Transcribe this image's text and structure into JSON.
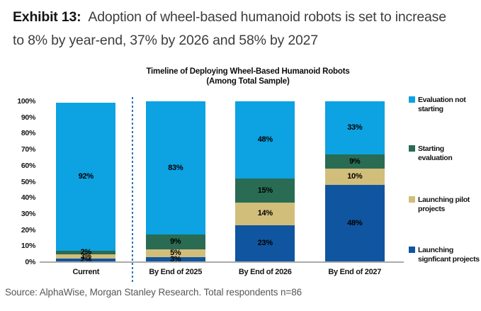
{
  "header": {
    "exhibit_label": "Exhibit 13:",
    "title_text": "Adoption of wheel-based humanoid robots is set to increase to 8% by year-end, 37% by 2026 and 58% by 2027"
  },
  "chart_data": {
    "type": "bar",
    "stacked": true,
    "percent_stacked": true,
    "title": "Timeline of Deploying Wheel-Based Humanoid Robots",
    "subtitle": "(Among Total Sample)",
    "categories": [
      "Current",
      "By End of 2025",
      "By End of 2026",
      "By End of 2027"
    ],
    "series": [
      {
        "name": "Evaluation not starting",
        "color": "#0da2e2",
        "values": [
          92,
          83,
          48,
          33
        ]
      },
      {
        "name": "Starting evaluation",
        "color": "#2a6b53",
        "values": [
          2,
          9,
          15,
          9
        ]
      },
      {
        "name": "Launching pilot projects",
        "color": "#d2be7b",
        "values": [
          3,
          5,
          14,
          10
        ]
      },
      {
        "name": "Launching signficant projects",
        "color": "#10559f",
        "values": [
          2,
          3,
          23,
          48
        ]
      }
    ],
    "y_ticks": [
      "100%",
      "90%",
      "80%",
      "70%",
      "60%",
      "50%",
      "40%",
      "30%",
      "20%",
      "10%",
      "0%"
    ],
    "ylim": [
      0,
      100
    ],
    "grid": false,
    "legend_position": "right",
    "divider_after_category": "Current",
    "divider_color": "#2e75b6",
    "axis_line_color": "#ababab"
  },
  "source": "Source: AlphaWise, Morgan Stanley Research. Total respondents n=86"
}
